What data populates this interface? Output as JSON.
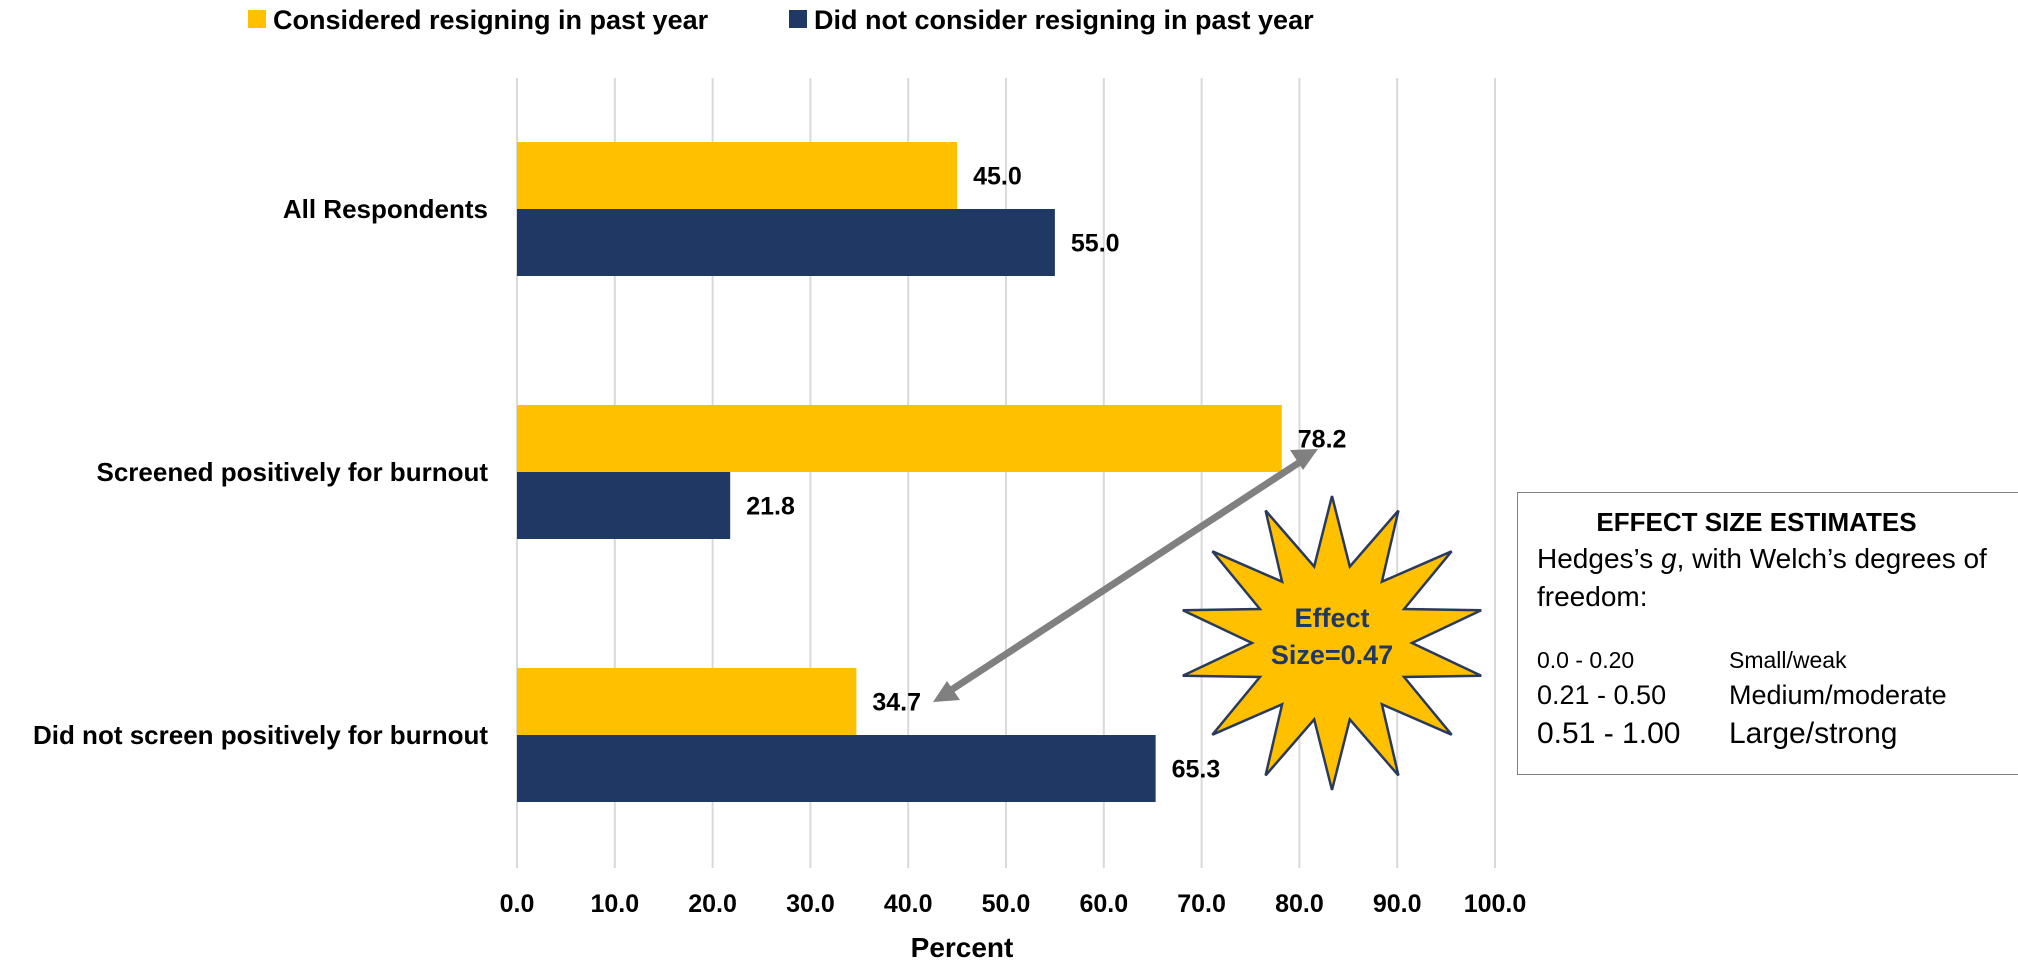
{
  "chart_data": {
    "type": "bar",
    "orientation": "horizontal",
    "categories": [
      "All Respondents",
      "Screened positively for burnout",
      "Did not screen positively for burnout"
    ],
    "series": [
      {
        "name": "Considered resigning in past year",
        "color": "#ffc000",
        "values": [
          45.0,
          78.2,
          34.7
        ]
      },
      {
        "name": "Did not consider resigning in past year",
        "color": "#203864",
        "values": [
          55.0,
          21.8,
          65.3
        ]
      }
    ],
    "xlabel": "Percent",
    "ylabel": "",
    "xlim": [
      0,
      100
    ],
    "xticks": [
      "0.0",
      "10.0",
      "20.0",
      "30.0",
      "40.0",
      "50.0",
      "60.0",
      "70.0",
      "80.0",
      "90.0",
      "100.0"
    ],
    "data_labels": [
      [
        "45.0",
        "78.2",
        "34.7"
      ],
      [
        "55.0",
        "21.8",
        "65.3"
      ]
    ],
    "grid": "vertical",
    "legend_position": "top",
    "annotation": {
      "star_text_line1": "Effect",
      "star_text_line2": "Size=0.47",
      "star_color": "#ffc000",
      "arrow_color": "#7f7f7f"
    }
  },
  "effect_box": {
    "title": "EFFECT SIZE ESTIMATES",
    "subtitle_prefix": "Hedges’s ",
    "subtitle_italic": "g",
    "subtitle_suffix": ", with Welch’s degrees of freedom:",
    "rows": [
      {
        "range": "0.0 - 0.20",
        "label": "Small/weak"
      },
      {
        "range": "0.21 - 0.50",
        "label": "Medium/moderate"
      },
      {
        "range": "0.51 - 1.00",
        "label": "Large/strong"
      }
    ]
  }
}
